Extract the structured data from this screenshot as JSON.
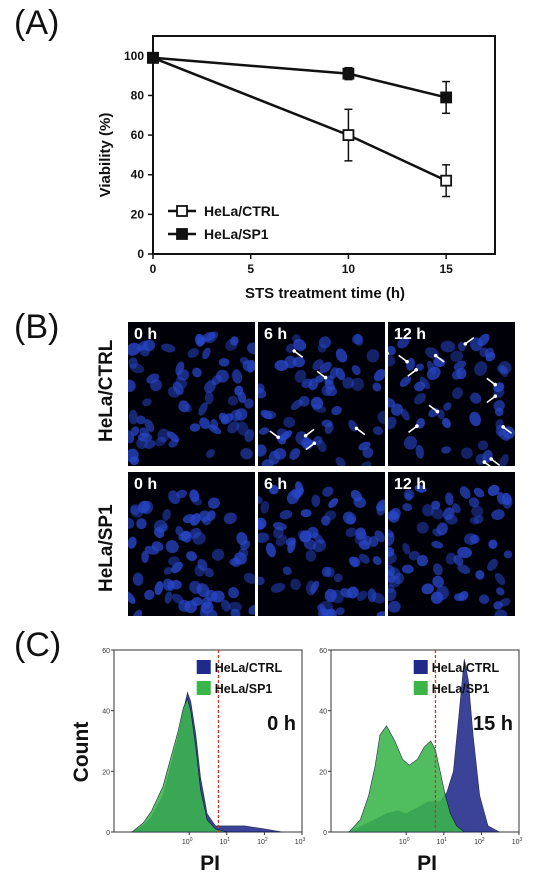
{
  "panels": {
    "a": "(A)",
    "b": "(B)",
    "c": "(C)"
  },
  "chart_data": [
    {
      "type": "line",
      "xlabel": "STS treatment time (h)",
      "ylabel": "Viability (%)",
      "xlim": [
        0,
        17.5
      ],
      "ylim": [
        0,
        110
      ],
      "xticks": [
        0,
        5,
        10,
        15
      ],
      "yticks": [
        0,
        20,
        40,
        60,
        80,
        100
      ],
      "legend_position": "bottom-left",
      "series": [
        {
          "name": "HeLa/CTRL",
          "marker": "open-square",
          "color": "#111111",
          "x": [
            0,
            10,
            15
          ],
          "y": [
            99,
            60,
            37
          ],
          "err": [
            2,
            13,
            8
          ]
        },
        {
          "name": "HeLa/SP1",
          "marker": "filled-square",
          "color": "#111111",
          "x": [
            0,
            10,
            15
          ],
          "y": [
            99,
            91,
            79
          ],
          "err": [
            2,
            3,
            8
          ]
        }
      ]
    },
    {
      "type": "area",
      "panel_label": "0 h",
      "xlabel": "PI",
      "ylabel": "Count",
      "x_scale": "log",
      "xlim": [
        0.01,
        1000
      ],
      "ylim": [
        0,
        60
      ],
      "xticks": [
        "10^0",
        "10^1",
        "10^2",
        "10^3"
      ],
      "yticks": [
        0,
        20,
        40,
        60
      ],
      "gate_x": 6,
      "legend_position": "top-right",
      "series": [
        {
          "name": "HeLa/CTRL",
          "color": "#1f2a8a",
          "x": [
            0.03,
            0.06,
            0.1,
            0.2,
            0.3,
            0.5,
            0.7,
            0.9,
            1.1,
            1.5,
            2,
            3,
            5,
            10,
            30,
            100,
            300
          ],
          "y": [
            0,
            2,
            5,
            12,
            20,
            31,
            40,
            46,
            43,
            32,
            18,
            6,
            2,
            2,
            2,
            1,
            0
          ]
        },
        {
          "name": "HeLa/SP1",
          "color": "#39b54a",
          "x": [
            0.03,
            0.06,
            0.1,
            0.2,
            0.3,
            0.5,
            0.7,
            0.9,
            1.1,
            1.5,
            2,
            3,
            5,
            10
          ],
          "y": [
            0,
            3,
            7,
            15,
            23,
            33,
            41,
            44,
            40,
            28,
            14,
            4,
            1,
            0
          ]
        }
      ]
    },
    {
      "type": "area",
      "panel_label": "15 h",
      "xlabel": "PI",
      "ylabel": "",
      "x_scale": "log",
      "xlim": [
        0.01,
        1000
      ],
      "ylim": [
        0,
        60
      ],
      "xticks": [
        "10^0",
        "10^1",
        "10^2",
        "10^3"
      ],
      "yticks": [
        0,
        20,
        40,
        60
      ],
      "gate_x": 6,
      "legend_position": "top-right",
      "series": [
        {
          "name": "HeLa/CTRL",
          "color": "#1f2a8a",
          "x": [
            0.03,
            0.1,
            0.3,
            0.6,
            1,
            2,
            4,
            8,
            12,
            18,
            25,
            35,
            45,
            60,
            90,
            150,
            300
          ],
          "y": [
            0,
            3,
            6,
            7,
            6,
            8,
            10,
            10,
            13,
            20,
            38,
            57,
            50,
            32,
            12,
            2,
            0
          ]
        },
        {
          "name": "HeLa/SP1",
          "color": "#39b54a",
          "x": [
            0.03,
            0.06,
            0.1,
            0.15,
            0.2,
            0.3,
            0.5,
            0.8,
            1.2,
            2,
            3,
            4.5,
            6,
            8,
            11,
            15,
            22,
            35
          ],
          "y": [
            0,
            4,
            12,
            22,
            32,
            35,
            30,
            24,
            22,
            24,
            28,
            30,
            27,
            20,
            12,
            6,
            2,
            0
          ]
        }
      ]
    }
  ],
  "microscopy": {
    "row_labels": [
      "HeLa/CTRL",
      "HeLa/SP1"
    ],
    "time_labels": [
      "0 h",
      "6 h",
      "12 h"
    ]
  },
  "colors": {
    "stain": "#2846c8",
    "background": "#000009",
    "ctrl_hist": "#1f2a8a",
    "sp1_hist": "#39b54a",
    "gate": "#c0392b"
  }
}
